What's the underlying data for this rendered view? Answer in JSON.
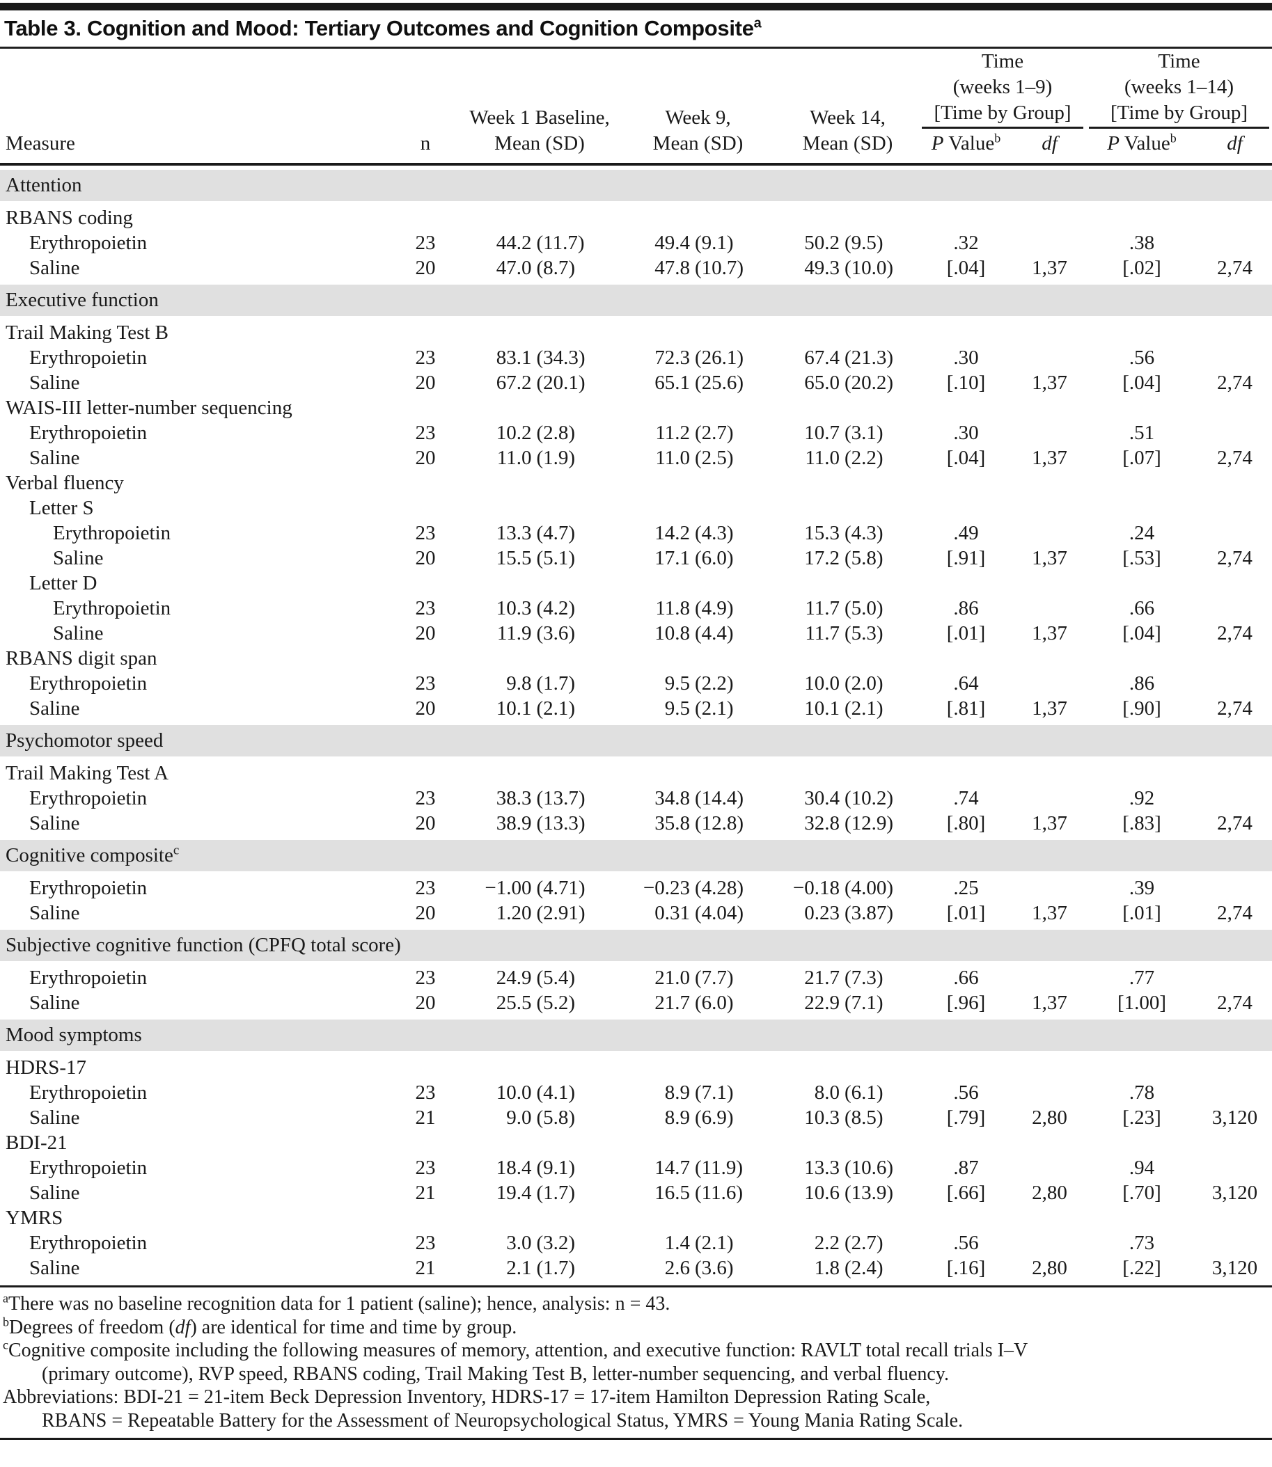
{
  "colors": {
    "section_band": "#e0e0e0",
    "rule": "#1a1a1a"
  },
  "title": {
    "text": "Table 3. Cognition and Mood: Tertiary Outcomes and Cognition Composite",
    "sup": "a"
  },
  "header": {
    "measure": "Measure",
    "n": "n",
    "week1": [
      "Week 1 Baseline,",
      "Mean (SD)"
    ],
    "week9": [
      "Week 9,",
      "Mean (SD)"
    ],
    "week14": [
      "Week 14,",
      "Mean (SD)"
    ],
    "group1": [
      "Time",
      "(weeks 1–9)",
      "[Time by Group]"
    ],
    "group2": [
      "Time",
      "(weeks 1–14)",
      "[Time by Group]"
    ],
    "p_label": {
      "italic": "P",
      "rest": " Value",
      "sup": "b"
    },
    "df_label": "df"
  },
  "rows": [
    {
      "type": "section",
      "label": "Attention"
    },
    {
      "type": "measure",
      "label": "RBANS coding",
      "indent": 0
    },
    {
      "type": "data",
      "label": "Erythropoietin",
      "indent": 1,
      "n": "23",
      "w1": "44.2 (11.7)",
      "w9": "49.4 (9.1)",
      "w14": "50.2 (9.5)",
      "p1": ".32",
      "df1": "",
      "p2": ".38",
      "df2": ""
    },
    {
      "type": "data",
      "label": "Saline",
      "indent": 1,
      "n": "20",
      "w1": "47.0 (8.7)",
      "w9": "47.8 (10.7)",
      "w14": "49.3 (10.0)",
      "p1": "[.04]",
      "df1": "1,37",
      "p2": "[.02]",
      "df2": "2,74"
    },
    {
      "type": "section",
      "label": "Executive function"
    },
    {
      "type": "measure",
      "label": "Trail Making Test B",
      "indent": 0
    },
    {
      "type": "data",
      "label": "Erythropoietin",
      "indent": 1,
      "n": "23",
      "w1": "83.1 (34.3)",
      "w9": "72.3 (26.1)",
      "w14": "67.4 (21.3)",
      "p1": ".30",
      "df1": "",
      "p2": ".56",
      "df2": ""
    },
    {
      "type": "data",
      "label": "Saline",
      "indent": 1,
      "n": "20",
      "w1": "67.2 (20.1)",
      "w9": "65.1 (25.6)",
      "w14": "65.0 (20.2)",
      "p1": "[.10]",
      "df1": "1,37",
      "p2": "[.04]",
      "df2": "2,74"
    },
    {
      "type": "measure",
      "label": "WAIS-III letter-number sequencing",
      "indent": 0
    },
    {
      "type": "data",
      "label": "Erythropoietin",
      "indent": 1,
      "n": "23",
      "w1": "10.2 (2.8)",
      "w9": "11.2 (2.7)",
      "w14": "10.7 (3.1)",
      "p1": ".30",
      "df1": "",
      "p2": ".51",
      "df2": ""
    },
    {
      "type": "data",
      "label": "Saline",
      "indent": 1,
      "n": "20",
      "w1": "11.0 (1.9)",
      "w9": "11.0 (2.5)",
      "w14": "11.0 (2.2)",
      "p1": "[.04]",
      "df1": "1,37",
      "p2": "[.07]",
      "df2": "2,74"
    },
    {
      "type": "measure",
      "label": "Verbal fluency",
      "indent": 0
    },
    {
      "type": "measure",
      "label": "Letter S",
      "indent": 1
    },
    {
      "type": "data",
      "label": "Erythropoietin",
      "indent": 2,
      "n": "23",
      "w1": "13.3 (4.7)",
      "w9": "14.2 (4.3)",
      "w14": "15.3 (4.3)",
      "p1": ".49",
      "df1": "",
      "p2": ".24",
      "df2": ""
    },
    {
      "type": "data",
      "label": "Saline",
      "indent": 2,
      "n": "20",
      "w1": "15.5 (5.1)",
      "w9": "17.1 (6.0)",
      "w14": "17.2 (5.8)",
      "p1": "[.91]",
      "df1": "1,37",
      "p2": "[.53]",
      "df2": "2,74"
    },
    {
      "type": "measure",
      "label": "Letter D",
      "indent": 1
    },
    {
      "type": "data",
      "label": "Erythropoietin",
      "indent": 2,
      "n": "23",
      "w1": "10.3 (4.2)",
      "w9": "11.8 (4.9)",
      "w14": "11.7 (5.0)",
      "p1": ".86",
      "df1": "",
      "p2": ".66",
      "df2": ""
    },
    {
      "type": "data",
      "label": "Saline",
      "indent": 2,
      "n": "20",
      "w1": "11.9 (3.6)",
      "w9": "10.8 (4.4)",
      "w14": "11.7 (5.3)",
      "p1": "[.01]",
      "df1": "1,37",
      "p2": "[.04]",
      "df2": "2,74"
    },
    {
      "type": "measure",
      "label": "RBANS digit span",
      "indent": 0
    },
    {
      "type": "data",
      "label": "Erythropoietin",
      "indent": 1,
      "n": "23",
      "w1": "9.8 (1.7)",
      "w9": "9.5 (2.2)",
      "w14": "10.0 (2.0)",
      "p1": ".64",
      "df1": "",
      "p2": ".86",
      "df2": ""
    },
    {
      "type": "data",
      "label": "Saline",
      "indent": 1,
      "n": "20",
      "w1": "10.1 (2.1)",
      "w9": "9.5 (2.1)",
      "w14": "10.1 (2.1)",
      "p1": "[.81]",
      "df1": "1,37",
      "p2": "[.90]",
      "df2": "2,74"
    },
    {
      "type": "section",
      "label": "Psychomotor speed"
    },
    {
      "type": "measure",
      "label": "Trail Making Test A",
      "indent": 0
    },
    {
      "type": "data",
      "label": "Erythropoietin",
      "indent": 1,
      "n": "23",
      "w1": "38.3 (13.7)",
      "w9": "34.8 (14.4)",
      "w14": "30.4 (10.2)",
      "p1": ".74",
      "df1": "",
      "p2": ".92",
      "df2": ""
    },
    {
      "type": "data",
      "label": "Saline",
      "indent": 1,
      "n": "20",
      "w1": "38.9 (13.3)",
      "w9": "35.8 (12.8)",
      "w14": "32.8 (12.9)",
      "p1": "[.80]",
      "df1": "1,37",
      "p2": "[.83]",
      "df2": "2,74"
    },
    {
      "type": "section",
      "label": "Cognitive composite",
      "sup": "c"
    },
    {
      "type": "data",
      "label": "Erythropoietin",
      "indent": 1,
      "n": "23",
      "w1": "−1.00 (4.71)",
      "w9": "−0.23 (4.28)",
      "w14": "−0.18 (4.00)",
      "p1": ".25",
      "df1": "",
      "p2": ".39",
      "df2": ""
    },
    {
      "type": "data",
      "label": "Saline",
      "indent": 1,
      "n": "20",
      "w1": "1.20 (2.91)",
      "w9": "0.31 (4.04)",
      "w14": "0.23 (3.87)",
      "p1": "[.01]",
      "df1": "1,37",
      "p2": "[.01]",
      "df2": "2,74"
    },
    {
      "type": "section",
      "label": "Subjective cognitive function (CPFQ total score)"
    },
    {
      "type": "data",
      "label": "Erythropoietin",
      "indent": 1,
      "n": "23",
      "w1": "24.9 (5.4)",
      "w9": "21.0 (7.7)",
      "w14": "21.7 (7.3)",
      "p1": ".66",
      "df1": "",
      "p2": ".77",
      "df2": ""
    },
    {
      "type": "data",
      "label": "Saline",
      "indent": 1,
      "n": "20",
      "w1": "25.5 (5.2)",
      "w9": "21.7 (6.0)",
      "w14": "22.9 (7.1)",
      "p1": "[.96]",
      "df1": "1,37",
      "p2": "[1.00]",
      "df2": "2,74"
    },
    {
      "type": "section",
      "label": "Mood symptoms"
    },
    {
      "type": "measure",
      "label": "HDRS-17",
      "indent": 0
    },
    {
      "type": "data",
      "label": "Erythropoietin",
      "indent": 1,
      "n": "23",
      "w1": "10.0 (4.1)",
      "w9": "8.9 (7.1)",
      "w14": "8.0 (6.1)",
      "p1": ".56",
      "df1": "",
      "p2": ".78",
      "df2": ""
    },
    {
      "type": "data",
      "label": "Saline",
      "indent": 1,
      "n": "21",
      "w1": "9.0 (5.8)",
      "w9": "8.9 (6.9)",
      "w14": "10.3 (8.5)",
      "p1": "[.79]",
      "df1": "2,80",
      "p2": "[.23]",
      "df2": "3,120"
    },
    {
      "type": "measure",
      "label": "BDI-21",
      "indent": 0
    },
    {
      "type": "data",
      "label": "Erythropoietin",
      "indent": 1,
      "n": "23",
      "w1": "18.4 (9.1)",
      "w9": "14.7 (11.9)",
      "w14": "13.3 (10.6)",
      "p1": ".87",
      "df1": "",
      "p2": ".94",
      "df2": ""
    },
    {
      "type": "data",
      "label": "Saline",
      "indent": 1,
      "n": "21",
      "w1": "19.4 (1.7)",
      "w9": "16.5 (11.6)",
      "w14": "10.6 (13.9)",
      "p1": "[.66]",
      "df1": "2,80",
      "p2": "[.70]",
      "df2": "3,120"
    },
    {
      "type": "measure",
      "label": "YMRS",
      "indent": 0
    },
    {
      "type": "data",
      "label": "Erythropoietin",
      "indent": 1,
      "n": "23",
      "w1": "3.0 (3.2)",
      "w9": "1.4 (2.1)",
      "w14": "2.2 (2.7)",
      "p1": ".56",
      "df1": "",
      "p2": ".73",
      "df2": ""
    },
    {
      "type": "data",
      "label": "Saline",
      "indent": 1,
      "n": "21",
      "w1": "2.1 (1.7)",
      "w9": "2.6 (3.6)",
      "w14": "1.8 (2.4)",
      "p1": "[.16]",
      "df1": "2,80",
      "p2": "[.22]",
      "df2": "3,120"
    }
  ],
  "footnotes": [
    {
      "sup": "a",
      "lines": [
        [
          {
            "t": "There was no baseline recognition data for 1 patient (saline); hence, analysis: n = 43."
          }
        ]
      ]
    },
    {
      "sup": "b",
      "lines": [
        [
          {
            "t": "Degrees of freedom ("
          },
          {
            "t": "df",
            "i": true
          },
          {
            "t": ") are identical for time and time by group."
          }
        ]
      ]
    },
    {
      "sup": "c",
      "lines": [
        [
          {
            "t": "Cognitive composite including the following measures of memory, attention, and executive function: RAVLT total recall trials I–V"
          }
        ],
        [
          {
            "t": "(primary outcome), RVP speed, RBANS coding, Trail Making Test B, letter-number sequencing, and verbal fluency."
          }
        ]
      ]
    },
    {
      "sup": "",
      "lines": [
        [
          {
            "t": "Abbreviations: BDI-21 = 21-item Beck Depression Inventory, HDRS-17 = 17-item Hamilton Depression Rating Scale,"
          }
        ],
        [
          {
            "t": "RBANS = Repeatable Battery for the Assessment of Neuropsychological Status, YMRS = Young Mania Rating Scale."
          }
        ]
      ]
    }
  ]
}
